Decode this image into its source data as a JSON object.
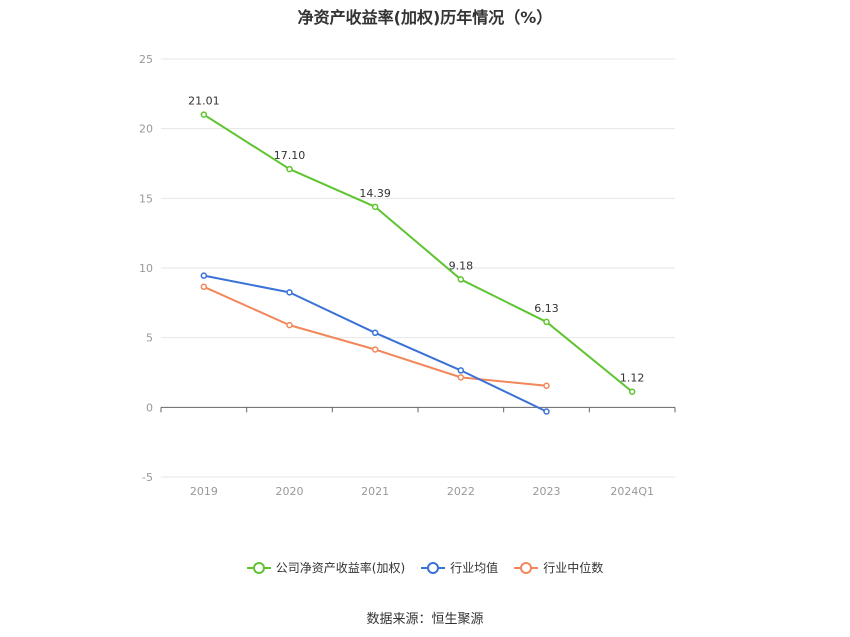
{
  "title": "净资产收益率(加权)历年情况（%）",
  "source": "数据来源：恒生聚源",
  "chart_data": {
    "type": "line",
    "categories": [
      "2019",
      "2020",
      "2021",
      "2022",
      "2023",
      "2024Q1"
    ],
    "ylim": [
      -5,
      25
    ],
    "yticks": [
      -5,
      0,
      5,
      10,
      15,
      20,
      25
    ],
    "grid": true,
    "legend_position": "bottom",
    "series": [
      {
        "name": "公司净资产收益率(加权)",
        "color": "#5fc431",
        "values": [
          21.01,
          17.1,
          14.39,
          9.18,
          6.13,
          1.12
        ],
        "labels": [
          "21.01",
          "17.10",
          "14.39",
          "9.18",
          "6.13",
          "1.12"
        ]
      },
      {
        "name": "行业均值",
        "color": "#3a72d8",
        "values": [
          9.45,
          8.25,
          5.35,
          2.65,
          -0.3,
          null
        ]
      },
      {
        "name": "行业中位数",
        "color": "#f2875a",
        "values": [
          8.65,
          5.9,
          4.15,
          2.15,
          1.55,
          null
        ]
      }
    ]
  }
}
